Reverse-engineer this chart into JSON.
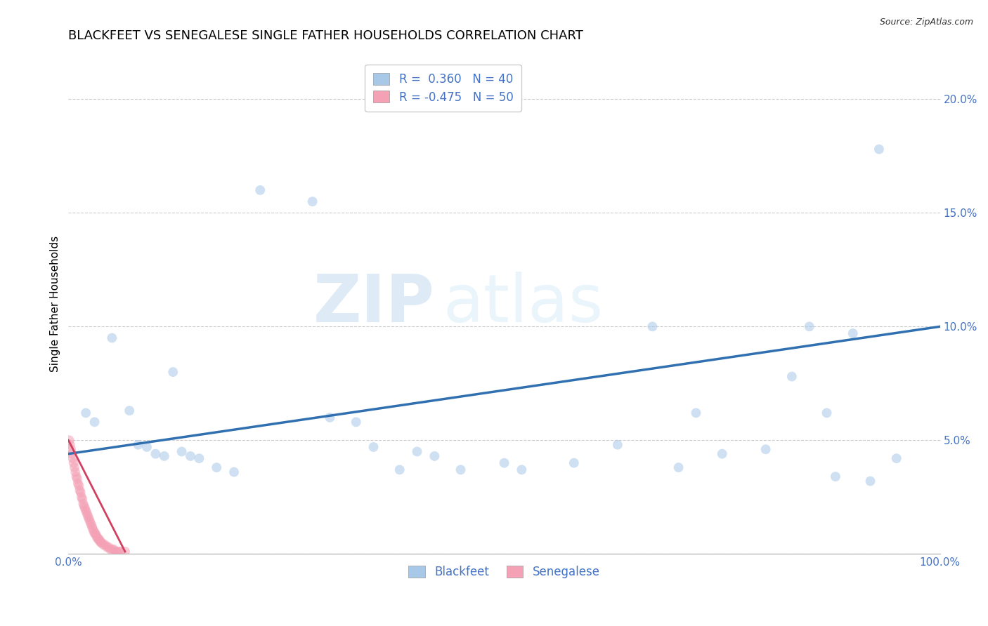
{
  "title": "BLACKFEET VS SENEGALESE SINGLE FATHER HOUSEHOLDS CORRELATION CHART",
  "source": "Source: ZipAtlas.com",
  "ylabel": "Single Father Households",
  "xlim": [
    0,
    1.0
  ],
  "ylim": [
    0,
    0.22
  ],
  "xticks": [
    0.0,
    0.1,
    0.2,
    0.3,
    0.4,
    0.5,
    0.6,
    0.7,
    0.8,
    0.9,
    1.0
  ],
  "xtick_labels": [
    "0.0%",
    "",
    "",
    "",
    "",
    "",
    "",
    "",
    "",
    "",
    "100.0%"
  ],
  "yticks": [
    0.0,
    0.05,
    0.1,
    0.15,
    0.2
  ],
  "ytick_labels": [
    "",
    "5.0%",
    "10.0%",
    "15.0%",
    "20.0%"
  ],
  "legend_blue_label": "R =  0.360   N = 40",
  "legend_pink_label": "R = -0.475   N = 50",
  "legend_bottom_blue": "Blackfeet",
  "legend_bottom_pink": "Senegalese",
  "blue_color": "#a8c8e8",
  "pink_color": "#f4a0b5",
  "blue_line_color": "#3070b0",
  "pink_line_color": "#d04060",
  "watermark_zip": "ZIP",
  "watermark_atlas": "atlas",
  "background_color": "#ffffff",
  "blue_scatter_x": [
    0.02,
    0.03,
    0.05,
    0.07,
    0.08,
    0.09,
    0.1,
    0.11,
    0.12,
    0.13,
    0.14,
    0.15,
    0.17,
    0.19,
    0.22,
    0.28,
    0.3,
    0.33,
    0.35,
    0.38,
    0.4,
    0.42,
    0.45,
    0.5,
    0.52,
    0.58,
    0.63,
    0.67,
    0.7,
    0.72,
    0.75,
    0.8,
    0.83,
    0.85,
    0.87,
    0.88,
    0.9,
    0.92,
    0.93,
    0.95
  ],
  "blue_scatter_y": [
    0.062,
    0.058,
    0.095,
    0.063,
    0.048,
    0.047,
    0.044,
    0.043,
    0.08,
    0.045,
    0.043,
    0.042,
    0.038,
    0.036,
    0.16,
    0.155,
    0.06,
    0.058,
    0.047,
    0.037,
    0.045,
    0.043,
    0.037,
    0.04,
    0.037,
    0.04,
    0.048,
    0.1,
    0.038,
    0.062,
    0.044,
    0.046,
    0.078,
    0.1,
    0.062,
    0.034,
    0.097,
    0.032,
    0.178,
    0.042
  ],
  "pink_scatter_x": [
    0.001,
    0.002,
    0.003,
    0.004,
    0.005,
    0.006,
    0.007,
    0.008,
    0.009,
    0.01,
    0.011,
    0.012,
    0.013,
    0.014,
    0.015,
    0.016,
    0.017,
    0.018,
    0.019,
    0.02,
    0.021,
    0.022,
    0.023,
    0.024,
    0.025,
    0.026,
    0.027,
    0.028,
    0.029,
    0.03,
    0.031,
    0.032,
    0.033,
    0.034,
    0.035,
    0.036,
    0.037,
    0.038,
    0.04,
    0.042,
    0.044,
    0.046,
    0.048,
    0.05,
    0.052,
    0.054,
    0.056,
    0.058,
    0.06,
    0.065
  ],
  "pink_scatter_y": [
    0.05,
    0.048,
    0.046,
    0.044,
    0.042,
    0.04,
    0.038,
    0.036,
    0.034,
    0.033,
    0.031,
    0.03,
    0.028,
    0.027,
    0.025,
    0.024,
    0.022,
    0.021,
    0.02,
    0.019,
    0.018,
    0.017,
    0.016,
    0.015,
    0.014,
    0.013,
    0.012,
    0.011,
    0.01,
    0.009,
    0.009,
    0.008,
    0.007,
    0.007,
    0.006,
    0.006,
    0.005,
    0.005,
    0.004,
    0.004,
    0.003,
    0.003,
    0.002,
    0.002,
    0.002,
    0.001,
    0.001,
    0.001,
    0.001,
    0.001
  ],
  "blue_trendline_x": [
    0.0,
    1.0
  ],
  "blue_trendline_y": [
    0.044,
    0.1
  ],
  "pink_trendline_x": [
    0.0,
    0.065
  ],
  "pink_trendline_y": [
    0.05,
    0.001
  ],
  "marker_size": 100,
  "marker_alpha": 0.55,
  "title_fontsize": 13,
  "axis_label_fontsize": 11,
  "tick_fontsize": 11,
  "legend_fontsize": 12
}
